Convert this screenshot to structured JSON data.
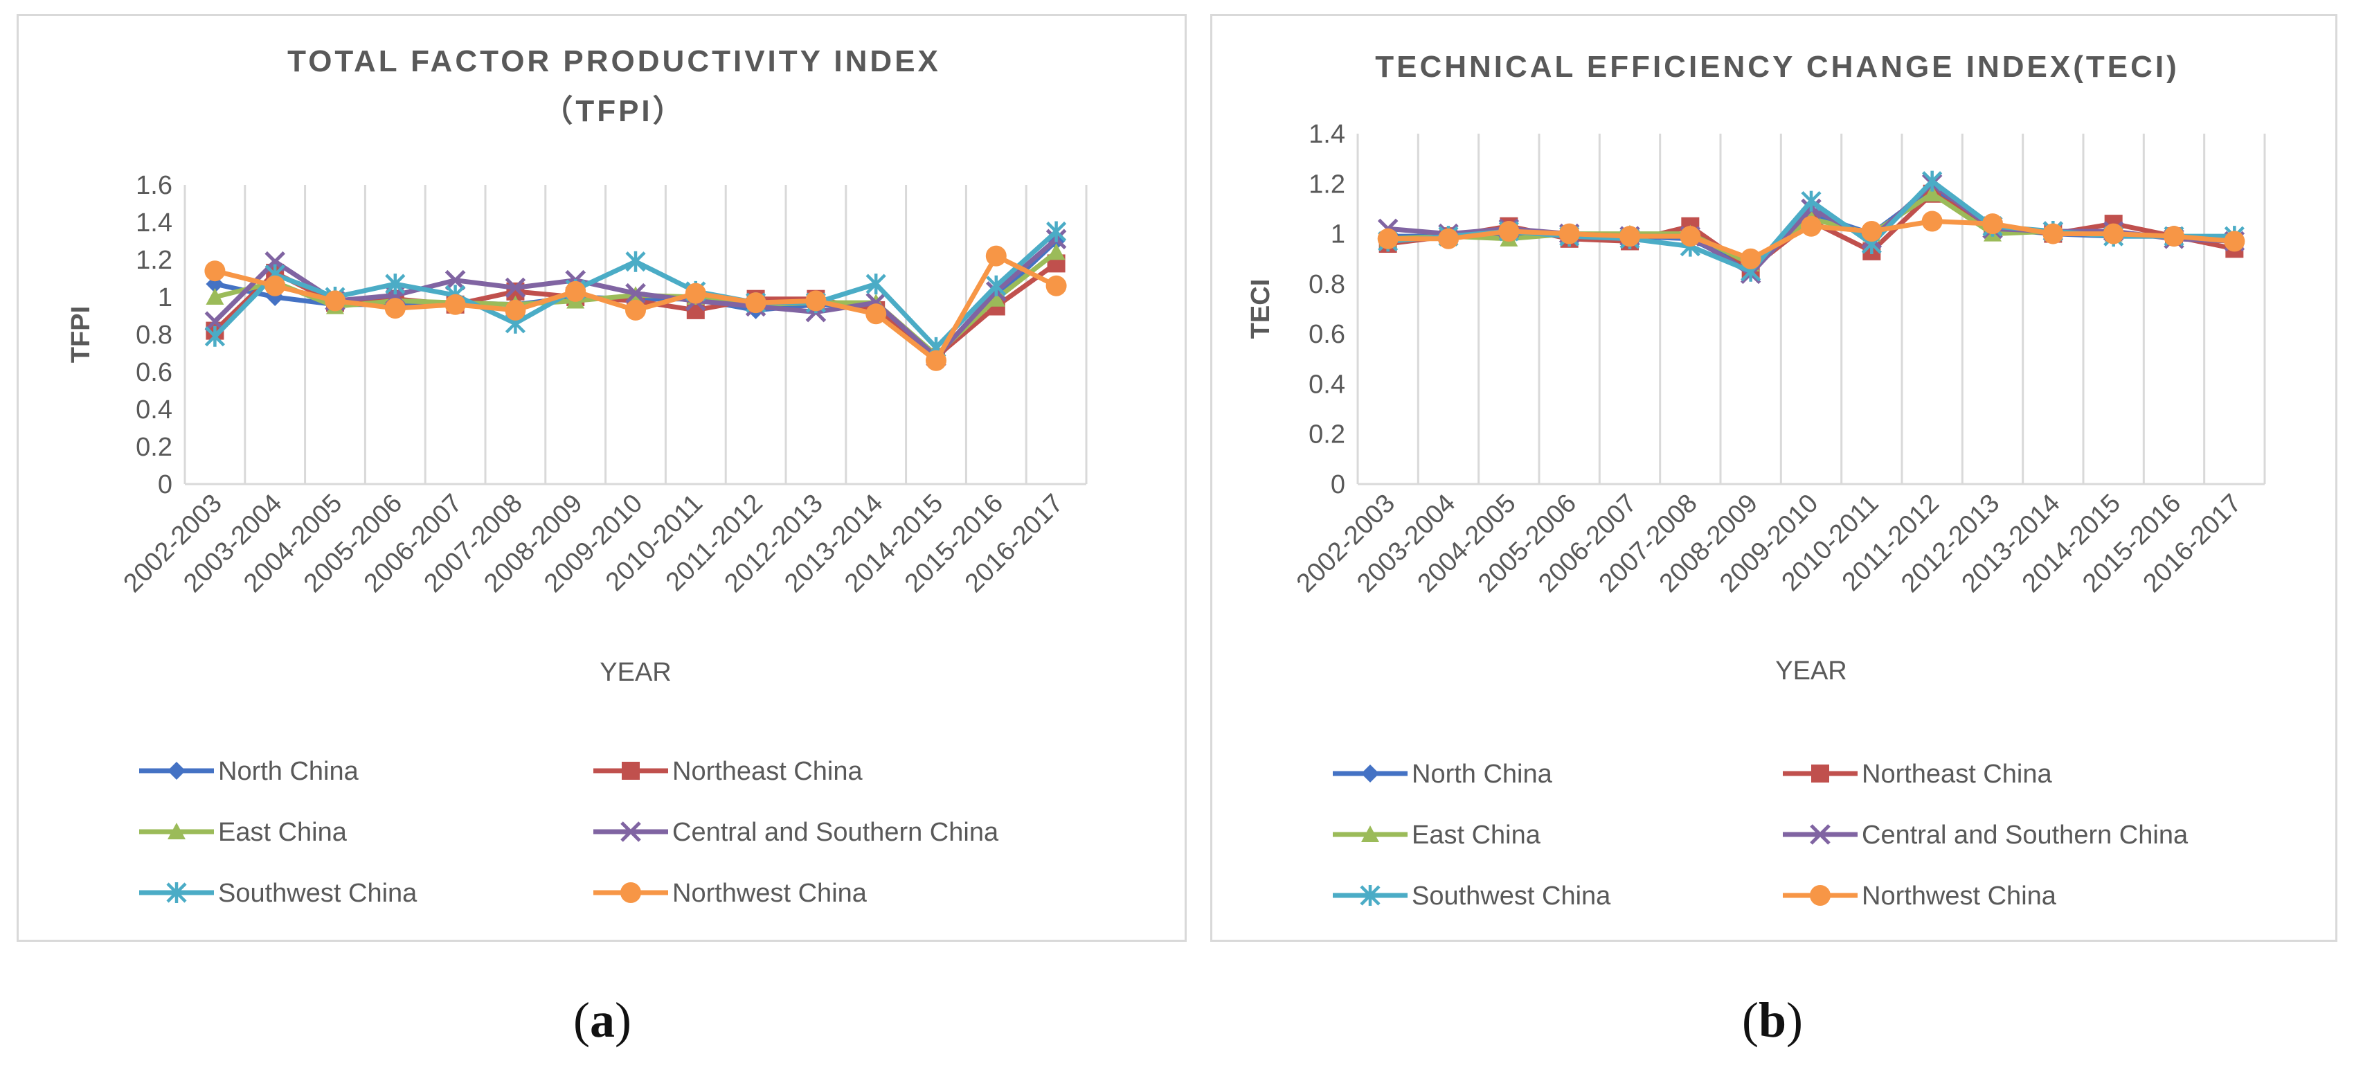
{
  "chart_data": [
    {
      "type": "line",
      "title_line1": "TOTAL FACTOR PRODUCTIVITY INDEX",
      "title_line2": "（TFPI）",
      "xlabel": "YEAR",
      "ylabel": "TFPI",
      "ylim": [
        0,
        1.6
      ],
      "yticks": [
        "0",
        "0.2",
        "0.4",
        "0.6",
        "0.8",
        "1",
        "1.2",
        "1.4",
        "1.6"
      ],
      "categories": [
        "2002-2003",
        "2003-2004",
        "2004-2005",
        "2005-2006",
        "2006-2007",
        "2007-2008",
        "2008-2009",
        "2009-2010",
        "2010-2011",
        "2011-2012",
        "2012-2013",
        "2013-2014",
        "2014-2015",
        "2015-2016",
        "2016-2017"
      ],
      "series": [
        {
          "name": "North China",
          "color": "#4472c4",
          "marker": "diamond",
          "values": [
            1.07,
            1.0,
            0.96,
            0.96,
            0.97,
            0.96,
            1.0,
            0.99,
            0.99,
            0.93,
            0.96,
            0.95,
            0.67,
            1.0,
            1.3
          ]
        },
        {
          "name": "Northeast China",
          "color": "#c0504d",
          "marker": "square",
          "values": [
            0.82,
            1.13,
            0.97,
            0.99,
            0.96,
            1.03,
            1.0,
            0.98,
            0.93,
            0.99,
            0.99,
            0.93,
            0.68,
            0.95,
            1.18
          ]
        },
        {
          "name": "East China",
          "color": "#9bbb59",
          "marker": "triangle",
          "values": [
            1.0,
            1.08,
            0.95,
            0.98,
            0.97,
            0.96,
            0.98,
            1.01,
            1.0,
            0.96,
            0.97,
            0.97,
            0.69,
            0.99,
            1.24
          ]
        },
        {
          "name": "Central and Southern China",
          "color": "#8064a2",
          "marker": "x",
          "values": [
            0.87,
            1.19,
            0.98,
            1.01,
            1.09,
            1.05,
            1.09,
            1.02,
            0.98,
            0.95,
            0.92,
            0.97,
            0.68,
            1.03,
            1.31
          ]
        },
        {
          "name": "Southwest China",
          "color": "#4bacc6",
          "marker": "star",
          "values": [
            0.79,
            1.12,
            1.0,
            1.07,
            1.01,
            0.86,
            1.04,
            1.19,
            1.03,
            0.97,
            0.97,
            1.07,
            0.73,
            1.06,
            1.35
          ]
        },
        {
          "name": "Northwest China",
          "color": "#f79646",
          "marker": "circle",
          "values": [
            1.14,
            1.06,
            0.98,
            0.94,
            0.96,
            0.93,
            1.03,
            0.93,
            1.02,
            0.97,
            0.98,
            0.91,
            0.66,
            1.22,
            1.06
          ]
        }
      ]
    },
    {
      "type": "line",
      "title_line1": "TECHNICAL EFFICIENCY CHANGE INDEX(TECI)",
      "xlabel": "YEAR",
      "ylabel": "TECI",
      "ylim": [
        0,
        1.4
      ],
      "yticks": [
        "0",
        "0.2",
        "0.4",
        "0.6",
        "0.8",
        "1",
        "1.2",
        "1.4"
      ],
      "categories": [
        "2002-2003",
        "2003-2004",
        "2004-2005",
        "2005-2006",
        "2006-2007",
        "2007-2008",
        "2008-2009",
        "2009-2010",
        "2010-2011",
        "2011-2012",
        "2012-2013",
        "2013-2014",
        "2014-2015",
        "2015-2016",
        "2016-2017"
      ],
      "series": [
        {
          "name": "North China",
          "color": "#4472c4",
          "marker": "diamond",
          "values": [
            0.99,
            0.99,
            1.0,
            1.0,
            0.99,
            0.98,
            0.86,
            1.08,
            1.0,
            1.18,
            1.02,
            1.0,
            0.99,
            0.99,
            0.98
          ]
        },
        {
          "name": "Northeast China",
          "color": "#c0504d",
          "marker": "square",
          "values": [
            0.96,
            0.99,
            1.03,
            0.98,
            0.97,
            1.03,
            0.86,
            1.05,
            0.93,
            1.16,
            1.03,
            1.0,
            1.04,
            0.99,
            0.94
          ]
        },
        {
          "name": "East China",
          "color": "#9bbb59",
          "marker": "triangle",
          "values": [
            0.98,
            0.99,
            0.98,
            1.0,
            1.0,
            1.0,
            0.88,
            1.06,
            1.0,
            1.16,
            1.0,
            1.01,
            1.0,
            0.99,
            0.98
          ]
        },
        {
          "name": "Central and Southern China",
          "color": "#8064a2",
          "marker": "x",
          "values": [
            1.02,
            1.0,
            1.02,
            1.0,
            0.99,
            0.99,
            0.84,
            1.1,
            0.98,
            1.2,
            1.02,
            1.01,
            1.01,
            0.98,
            0.97
          ]
        },
        {
          "name": "Southwest China",
          "color": "#4bacc6",
          "marker": "star",
          "values": [
            0.97,
            0.99,
            1.01,
            0.99,
            0.98,
            0.95,
            0.85,
            1.13,
            0.96,
            1.21,
            1.03,
            1.01,
            0.99,
            0.99,
            0.99
          ]
        },
        {
          "name": "Northwest China",
          "color": "#f79646",
          "marker": "circle",
          "values": [
            0.98,
            0.98,
            1.01,
            1.0,
            0.99,
            0.99,
            0.9,
            1.03,
            1.01,
            1.05,
            1.04,
            1.0,
            1.0,
            0.99,
            0.97
          ]
        }
      ]
    }
  ],
  "captions": {
    "a": "a",
    "b": "b"
  }
}
